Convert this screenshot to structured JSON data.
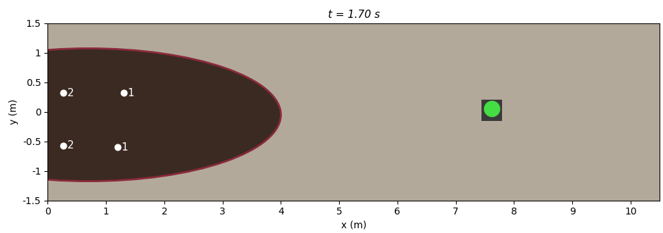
{
  "chart_data": {
    "type": "scatter",
    "title": "t = 1.70 s",
    "x_label": "x (m)",
    "y_label": "y (m)",
    "xlim": [
      0,
      10.5
    ],
    "ylim": [
      -1.5,
      1.5
    ],
    "xticks": [
      0,
      1,
      2,
      3,
      4,
      5,
      6,
      7,
      8,
      9,
      10
    ],
    "yticks": [
      -1.5,
      -1,
      -0.5,
      0,
      0.5,
      1,
      1.5
    ],
    "series": [
      {
        "type": "scatter",
        "color": "#ffffff",
        "marker": "circle",
        "x": [
          1.3,
          0.27,
          1.2,
          0.27
        ],
        "values": [
          0.32,
          0.32,
          -0.6,
          -0.57
        ],
        "point_labels": [
          "1",
          "2",
          "1",
          "2"
        ]
      },
      {
        "type": "scatter",
        "color": "#44dd44",
        "marker": "circle",
        "x": [
          7.62
        ],
        "values": [
          0.05
        ]
      }
    ]
  }
}
